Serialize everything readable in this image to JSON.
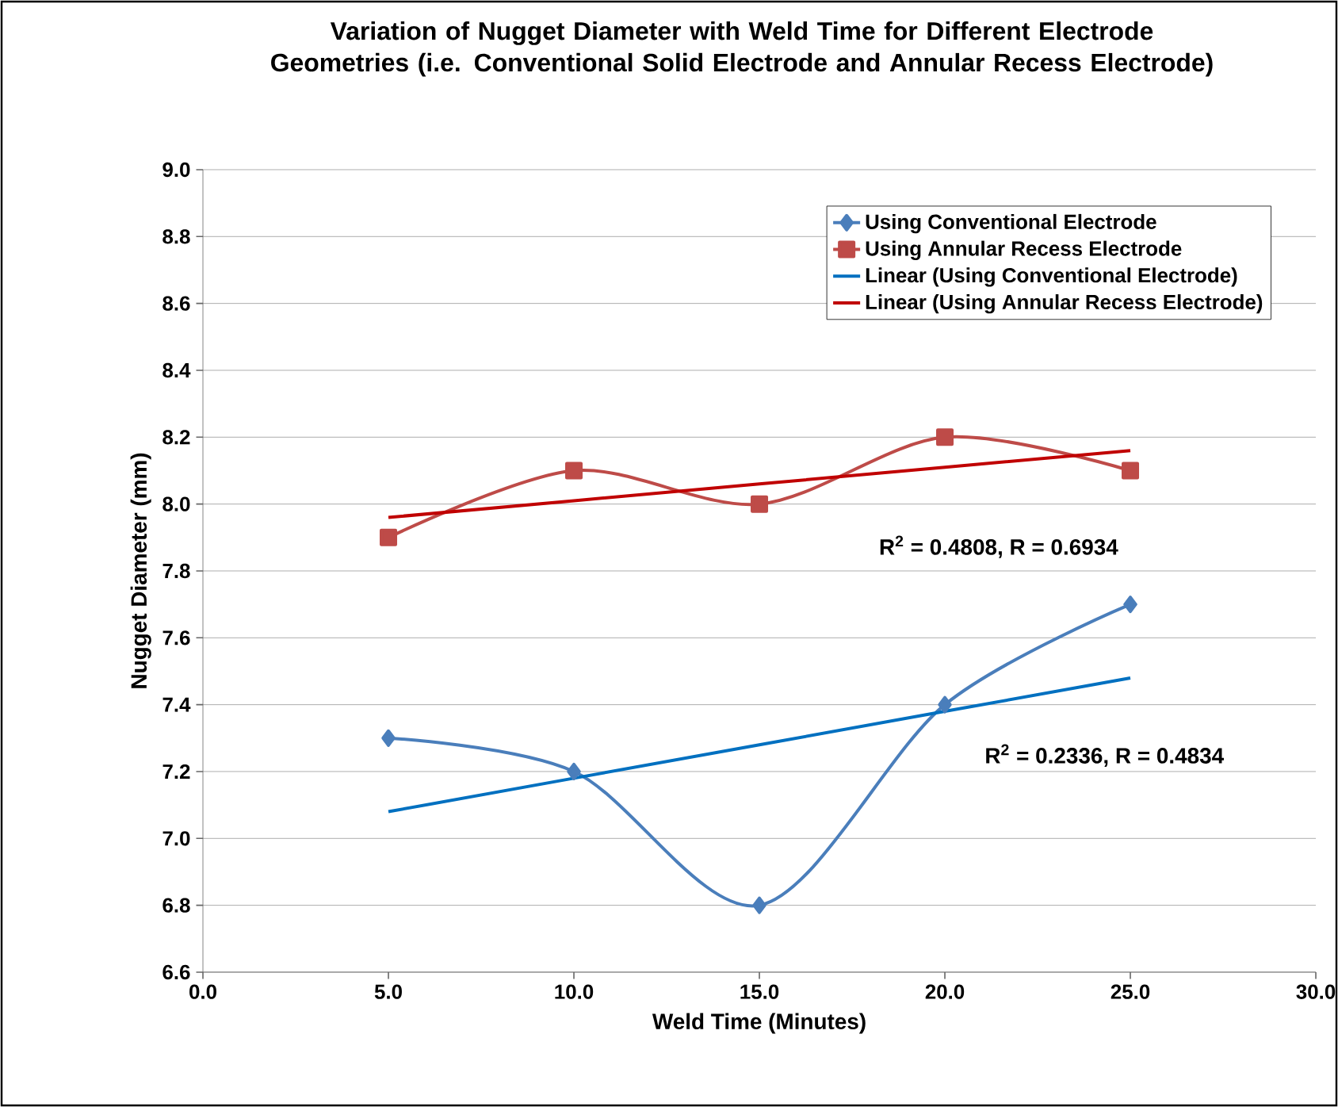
{
  "chart_data": {
    "type": "line",
    "title": "Variation of Nugget Diameter with  Weld Time  for Different Electrode Geometries (i.e. Conventional Solid Electrode and Annular Recess Electrode)",
    "xlabel": "Weld Time (Minutes)",
    "ylabel": "Nugget Diameter (mm)",
    "x": [
      5,
      10,
      15,
      20,
      25
    ],
    "series": [
      {
        "name": "Using Conventional Electrode",
        "color": "#4a7ebb",
        "marker": "diamond",
        "values": [
          7.3,
          7.2,
          6.8,
          7.4,
          7.7
        ]
      },
      {
        "name": "Using Annular Recess Electrode",
        "color": "#be4b48",
        "marker": "square",
        "values": [
          7.9,
          8.1,
          8.0,
          8.2,
          8.1
        ]
      },
      {
        "name": "Linear (Using Conventional Electrode)",
        "color": "#0070c0",
        "marker": "none",
        "values": [
          7.08,
          7.18,
          7.28,
          7.38,
          7.48
        ]
      },
      {
        "name": "Linear (Using Annular Recess Electrode)",
        "color": "#c00000",
        "marker": "none",
        "values": [
          7.96,
          8.01,
          8.06,
          8.11,
          8.16
        ]
      }
    ],
    "annotations": [
      "R$^{2}$ = 0.4808, R = 0.6934",
      "R$^{2}$ = 0.2336, R = 0.4834"
    ],
    "xlim": [
      0,
      30
    ],
    "ylim": [
      6.6,
      9.0
    ],
    "xticks": [
      {
        "value": 0,
        "label": "0.0"
      },
      {
        "value": 5,
        "label": "5.0"
      },
      {
        "value": 10,
        "label": "10.0"
      },
      {
        "value": 15,
        "label": "15.0"
      },
      {
        "value": 20,
        "label": "20.0"
      },
      {
        "value": 25,
        "label": "25.0"
      },
      {
        "value": 30,
        "label": "30.0"
      }
    ],
    "yticks": [
      6.6,
      6.8,
      {
        "value": 7.0,
        "label": "7.0"
      },
      7.2,
      7.4,
      7.6,
      7.8,
      {
        "value": 8.0,
        "label": "8.0"
      },
      8.2,
      8.4,
      8.6,
      8.8,
      {
        "value": 9.0,
        "label": "9.0"
      }
    ],
    "grid": "y",
    "legend": "top right",
    "line_style": "solid"
  }
}
